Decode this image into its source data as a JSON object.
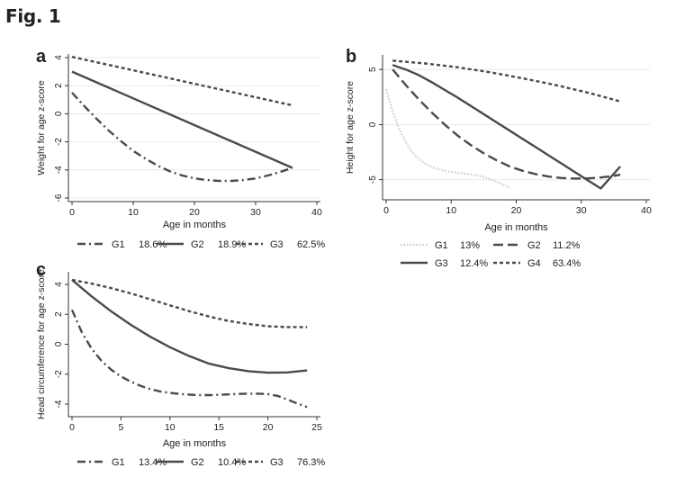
{
  "figure_title": "Fig. 1",
  "colors": {
    "line": "#4a4a4a",
    "light": "#c8c8c8",
    "grid": "#e8e8e8",
    "axis": "#333333"
  },
  "chart_data": [
    {
      "panel": "a",
      "type": "line",
      "ylabel": "Weight for age z-score",
      "xlabel": "Age in months",
      "xlim": [
        0,
        40
      ],
      "ylim": [
        -6,
        4
      ],
      "xticks": [
        0,
        10,
        20,
        30,
        40
      ],
      "yticks": [
        4,
        2,
        0,
        -2,
        -4,
        -6
      ],
      "grid": true,
      "series": [
        {
          "name": "G1",
          "pct": "18.6%",
          "style": "dashdot",
          "x": [
            0,
            2,
            4,
            6,
            8,
            10,
            12,
            14,
            16,
            18,
            20,
            22,
            24,
            26,
            28,
            30,
            32,
            34,
            36
          ],
          "y": [
            1.5,
            0.55,
            -0.35,
            -1.2,
            -1.95,
            -2.65,
            -3.2,
            -3.7,
            -4.1,
            -4.4,
            -4.6,
            -4.72,
            -4.78,
            -4.78,
            -4.72,
            -4.6,
            -4.4,
            -4.15,
            -3.85
          ]
        },
        {
          "name": "G2",
          "pct": "18.9%",
          "style": "solid",
          "x": [
            0,
            36
          ],
          "y": [
            3.0,
            -3.85
          ]
        },
        {
          "name": "G3",
          "pct": "62.5%",
          "style": "shortdash",
          "x": [
            0,
            36
          ],
          "y": [
            4.05,
            0.6
          ]
        }
      ]
    },
    {
      "panel": "b",
      "type": "line",
      "ylabel": "Height for age z-score",
      "xlabel": "Age in months",
      "xlim": [
        0,
        40
      ],
      "ylim": [
        -6.5,
        6
      ],
      "xticks": [
        0,
        10,
        20,
        30,
        40
      ],
      "yticks": [
        5,
        0,
        -5
      ],
      "grid": true,
      "series": [
        {
          "name": "G1",
          "pct": "13%",
          "style": "dotted-light",
          "x": [
            0,
            1,
            2,
            3,
            4,
            5,
            6,
            7,
            8,
            9,
            10,
            11,
            12,
            13,
            14,
            15,
            16,
            17,
            18,
            19
          ],
          "y": [
            3.2,
            1.2,
            -0.4,
            -1.6,
            -2.5,
            -3.1,
            -3.55,
            -3.85,
            -4.05,
            -4.2,
            -4.3,
            -4.38,
            -4.45,
            -4.52,
            -4.6,
            -4.75,
            -4.95,
            -5.2,
            -5.45,
            -5.7
          ]
        },
        {
          "name": "G2",
          "pct": "11.2%",
          "style": "longdash",
          "x": [
            1,
            3,
            5,
            7,
            9,
            11,
            13,
            15,
            17,
            19,
            21,
            23,
            25,
            27,
            29,
            31,
            33,
            35,
            36
          ],
          "y": [
            5.0,
            3.6,
            2.3,
            1.1,
            0.0,
            -1.0,
            -1.85,
            -2.6,
            -3.25,
            -3.8,
            -4.2,
            -4.5,
            -4.72,
            -4.85,
            -4.9,
            -4.88,
            -4.8,
            -4.65,
            -4.55
          ]
        },
        {
          "name": "G3",
          "pct": "12.4%",
          "style": "solid",
          "x": [
            1,
            3,
            5,
            7,
            9,
            11,
            13,
            15,
            17,
            19,
            21,
            23,
            25,
            27,
            29,
            31,
            33,
            36
          ],
          "y": [
            5.4,
            5.0,
            4.5,
            3.85,
            3.15,
            2.45,
            1.7,
            0.95,
            0.2,
            -0.55,
            -1.3,
            -2.05,
            -2.8,
            -3.55,
            -4.3,
            -5.05,
            -5.8,
            -3.8
          ]
        },
        {
          "name": "G4",
          "pct": "63.4%",
          "style": "shortdash",
          "x": [
            1,
            6,
            11,
            16,
            21,
            26,
            31,
            36
          ],
          "y": [
            5.8,
            5.55,
            5.2,
            4.75,
            4.2,
            3.6,
            2.9,
            2.1
          ]
        }
      ]
    },
    {
      "panel": "c",
      "type": "line",
      "ylabel": "Head circumference for age z-score",
      "xlabel": "Age in months",
      "xlim": [
        0,
        25
      ],
      "ylim": [
        -4.6,
        4.6
      ],
      "xticks": [
        0,
        5,
        10,
        15,
        20,
        25
      ],
      "yticks": [
        4,
        2,
        0,
        -2,
        -4
      ],
      "grid": false,
      "series": [
        {
          "name": "G1",
          "pct": "13.4%",
          "style": "dashdot",
          "x": [
            0,
            1,
            2,
            3,
            4,
            5,
            6,
            7,
            8,
            9,
            10,
            11,
            12,
            13,
            14,
            15,
            16,
            17,
            18,
            19,
            20,
            21,
            22,
            23,
            24
          ],
          "y": [
            2.3,
            0.8,
            -0.3,
            -1.1,
            -1.7,
            -2.15,
            -2.5,
            -2.78,
            -3.0,
            -3.15,
            -3.25,
            -3.32,
            -3.37,
            -3.4,
            -3.4,
            -3.38,
            -3.35,
            -3.32,
            -3.3,
            -3.3,
            -3.33,
            -3.45,
            -3.7,
            -3.95,
            -4.2
          ]
        },
        {
          "name": "G2",
          "pct": "10.4%",
          "style": "solid",
          "x": [
            0,
            2,
            4,
            6,
            8,
            10,
            12,
            14,
            16,
            18,
            20,
            22,
            24
          ],
          "y": [
            4.3,
            3.2,
            2.2,
            1.3,
            0.5,
            -0.2,
            -0.8,
            -1.3,
            -1.6,
            -1.8,
            -1.9,
            -1.88,
            -1.75
          ]
        },
        {
          "name": "G3",
          "pct": "76.3%",
          "style": "shortdash",
          "x": [
            0,
            2,
            4,
            6,
            8,
            10,
            12,
            14,
            16,
            18,
            20,
            22,
            24
          ],
          "y": [
            4.3,
            4.05,
            3.75,
            3.4,
            3.0,
            2.6,
            2.2,
            1.85,
            1.55,
            1.35,
            1.2,
            1.15,
            1.15
          ]
        }
      ]
    }
  ]
}
